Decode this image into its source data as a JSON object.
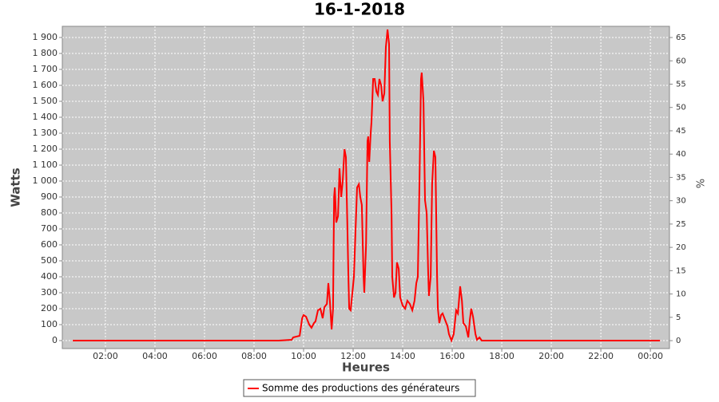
{
  "chart_data": {
    "type": "line",
    "title": "16-1-2018",
    "xlabel": "Heures",
    "ylabel": "Watts",
    "y2label": "%",
    "xlim": [
      0.26,
      24.77
    ],
    "xticks": [
      {
        "value": 2,
        "label": "02:00"
      },
      {
        "value": 4,
        "label": "04:00"
      },
      {
        "value": 6,
        "label": "06:00"
      },
      {
        "value": 8,
        "label": "08:00"
      },
      {
        "value": 10,
        "label": "10:00"
      },
      {
        "value": 12,
        "label": "12:00"
      },
      {
        "value": 14,
        "label": "14:00"
      },
      {
        "value": 16,
        "label": "16:00"
      },
      {
        "value": 18,
        "label": "18:00"
      },
      {
        "value": 20,
        "label": "20:00"
      },
      {
        "value": 22,
        "label": "22:00"
      },
      {
        "value": 24,
        "label": "00:00"
      }
    ],
    "ylim": [
      -50,
      1970
    ],
    "yticks": [
      0,
      100,
      200,
      300,
      400,
      500,
      600,
      700,
      800,
      900,
      {
        "value": 1000,
        "label": "1 000"
      },
      {
        "value": 1100,
        "label": "1 100"
      },
      {
        "value": 1200,
        "label": "1 200"
      },
      {
        "value": 1300,
        "label": "1 300"
      },
      {
        "value": 1400,
        "label": "1 400"
      },
      {
        "value": 1500,
        "label": "1 500"
      },
      {
        "value": 1600,
        "label": "1 600"
      },
      {
        "value": 1700,
        "label": "1 700"
      },
      {
        "value": 1800,
        "label": "1 800"
      },
      {
        "value": 1900,
        "label": "1 900"
      }
    ],
    "y2lim": [
      -1.7,
      67.4
    ],
    "y2ticks": [
      0,
      5,
      10,
      15,
      20,
      25,
      30,
      35,
      40,
      45,
      50,
      55,
      60,
      65
    ],
    "grid": true,
    "legend": "bottom",
    "x": [
      0.68,
      9.0,
      9.52,
      9.58,
      9.84,
      9.94,
      10.0,
      10.1,
      10.23,
      10.32,
      10.42,
      10.48,
      10.58,
      10.68,
      10.77,
      10.84,
      10.94,
      11.0,
      11.06,
      11.13,
      11.19,
      11.23,
      11.26,
      11.32,
      11.39,
      11.45,
      11.52,
      11.58,
      11.65,
      11.71,
      11.77,
      11.81,
      11.84,
      11.9,
      11.97,
      12.03,
      12.1,
      12.16,
      12.23,
      12.29,
      12.35,
      12.42,
      12.45,
      12.52,
      12.58,
      12.61,
      12.65,
      12.71,
      12.74,
      12.81,
      12.87,
      12.94,
      13.0,
      13.06,
      13.13,
      13.19,
      13.26,
      13.32,
      13.39,
      13.45,
      13.48,
      13.55,
      13.58,
      13.65,
      13.71,
      13.77,
      13.84,
      13.9,
      14.0,
      14.1,
      14.19,
      14.29,
      14.39,
      14.48,
      14.55,
      14.61,
      14.68,
      14.74,
      14.77,
      14.84,
      14.9,
      14.97,
      15.03,
      15.06,
      15.13,
      15.19,
      15.26,
      15.32,
      15.39,
      15.42,
      15.48,
      15.55,
      15.61,
      15.71,
      15.81,
      15.87,
      15.97,
      16.06,
      16.16,
      16.23,
      16.32,
      16.39,
      16.45,
      16.55,
      16.65,
      16.71,
      16.77,
      16.84,
      16.94,
      17.0,
      17.1,
      17.19,
      24.39
    ],
    "series": [
      {
        "name": "Somme des productions des  générateurs",
        "color": "#ff0000",
        "values": [
          0,
          0,
          5,
          20,
          30,
          140,
          160,
          150,
          100,
          80,
          110,
          120,
          190,
          200,
          140,
          210,
          230,
          360,
          250,
          70,
          200,
          900,
          960,
          740,
          780,
          1080,
          900,
          1000,
          1200,
          1150,
          700,
          400,
          200,
          190,
          300,
          400,
          700,
          960,
          980,
          900,
          850,
          400,
          300,
          600,
          1250,
          1280,
          1120,
          1300,
          1370,
          1640,
          1640,
          1560,
          1540,
          1640,
          1600,
          1500,
          1550,
          1840,
          1950,
          1860,
          1250,
          800,
          400,
          270,
          300,
          490,
          450,
          270,
          220,
          200,
          250,
          230,
          190,
          250,
          360,
          400,
          1000,
          1640,
          1680,
          1500,
          880,
          800,
          420,
          280,
          400,
          980,
          1190,
          1150,
          400,
          200,
          110,
          160,
          170,
          130,
          90,
          40,
          0,
          40,
          190,
          170,
          340,
          250,
          110,
          90,
          20,
          130,
          200,
          150,
          40,
          5,
          20,
          0,
          0
        ]
      }
    ]
  }
}
